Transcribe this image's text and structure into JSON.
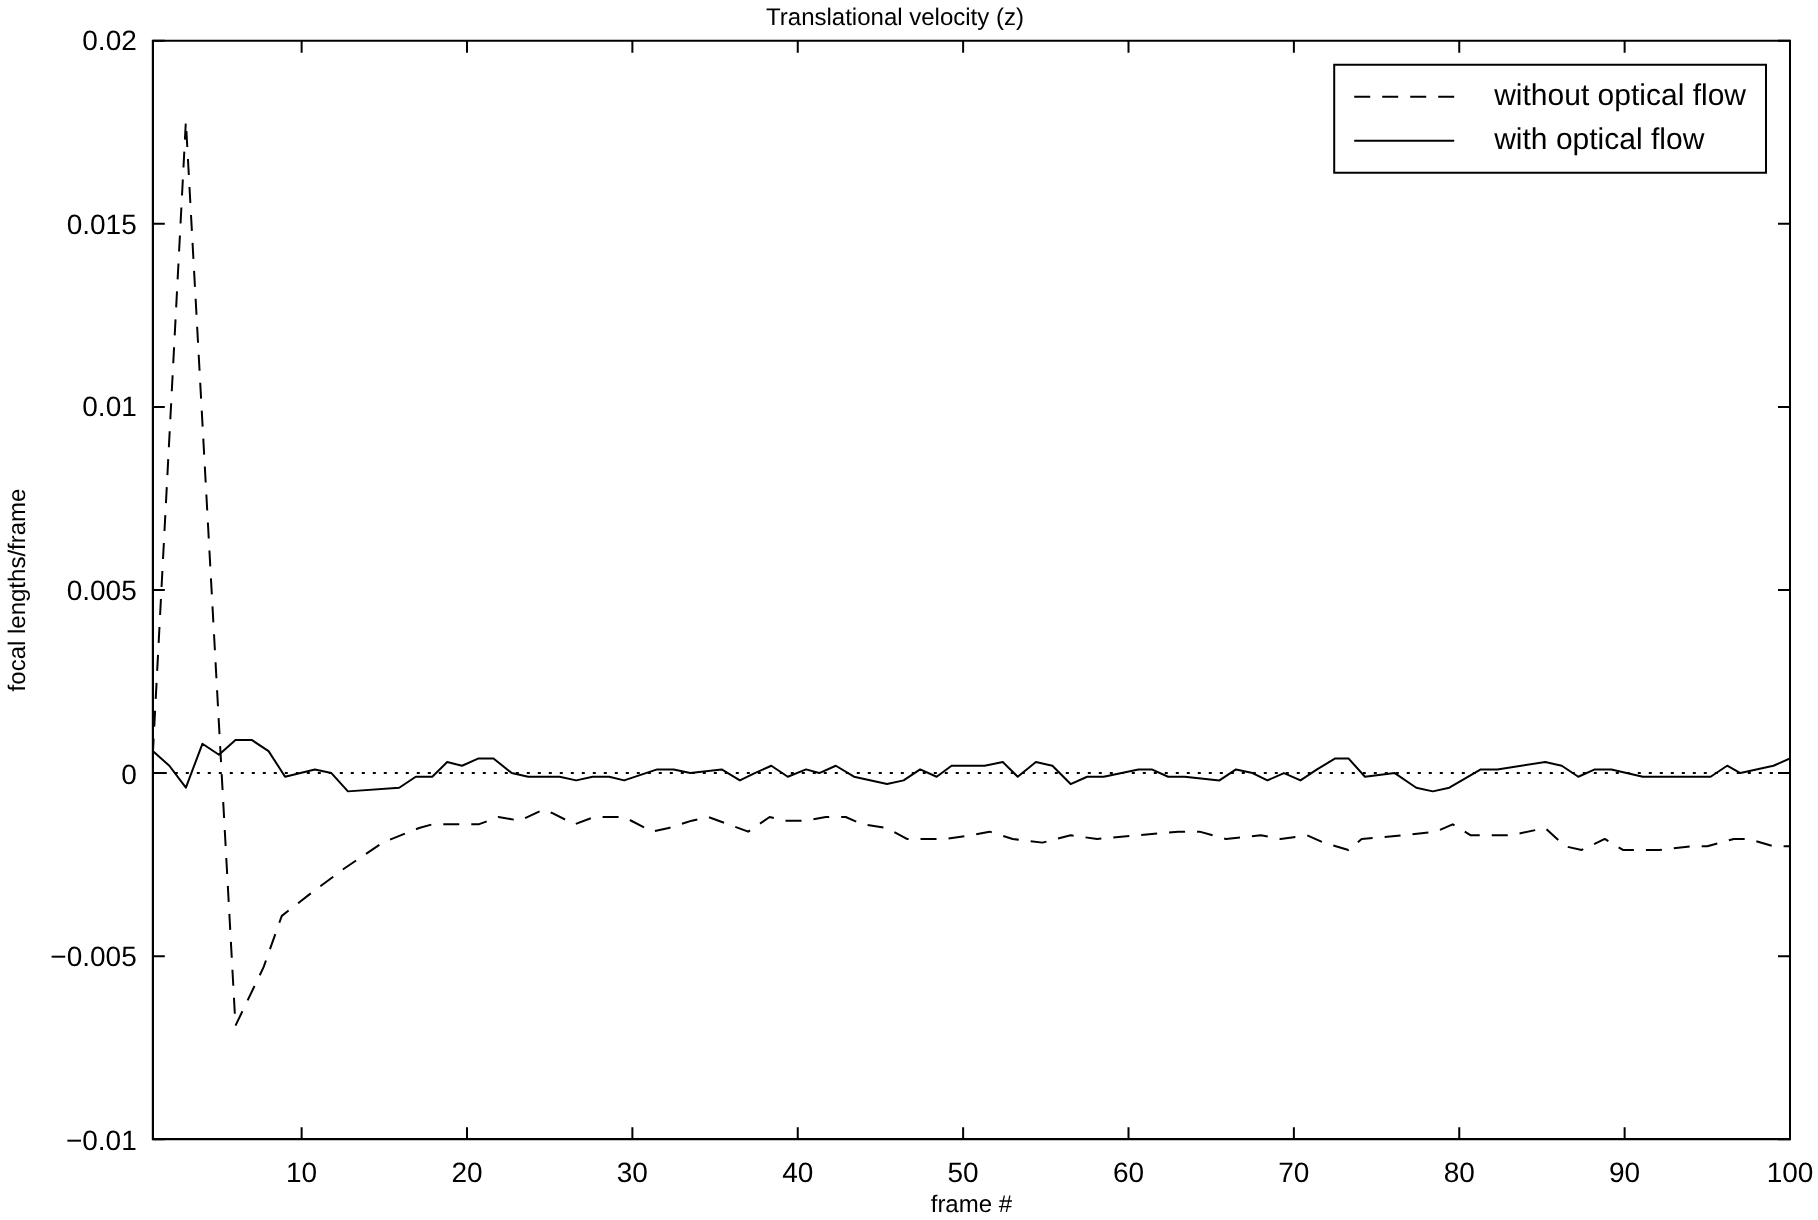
{
  "chart_data": {
    "type": "line",
    "title": "Translational velocity (z)",
    "xlabel": "frame #",
    "ylabel": "focal lengths/frame",
    "xlim": [
      1,
      100
    ],
    "xticks": [
      10,
      20,
      30,
      40,
      50,
      60,
      70,
      80,
      90,
      100
    ],
    "ylim": [
      -0.01,
      0.02
    ],
    "yticks": [
      -0.01,
      -0.005,
      0,
      0.005,
      0.01,
      0.015,
      0.02
    ],
    "grid": false,
    "legend": "top right",
    "marker": "none",
    "ref_lines": [
      {
        "axis": "y",
        "value": 0,
        "color": "#000000",
        "line_style": "dotted"
      }
    ],
    "series": [
      {
        "name": "without optical flow",
        "color": "#000000",
        "line_style": "dashed",
        "x": [
          1,
          3,
          6,
          7.7,
          8.8,
          10.8,
          12.6,
          14.9,
          17.1,
          17.9,
          20.7,
          21.9,
          23.2,
          24.6,
          25.2,
          26.5,
          27.7,
          29.5,
          31.2,
          32.2,
          33.6,
          34.6,
          37,
          38.3,
          39.3,
          40.5,
          41.7,
          42.9,
          43.9,
          45.4,
          46.6,
          48.9,
          50.5,
          51.6,
          53,
          54.8,
          56.5,
          58.1,
          60.6,
          63,
          64.3,
          65.9,
          68,
          69.2,
          70.8,
          71.8,
          73.3,
          74.1,
          76.6,
          78.6,
          79.6,
          80.7,
          83.1,
          85.2,
          86.4,
          87.4,
          88.8,
          89.9,
          92.1,
          94,
          95,
          96.6,
          97.5,
          99,
          100
        ],
        "values": [
          0.0005,
          0.0178,
          -0.0069,
          -0.0053,
          -0.0039,
          -0.0032,
          -0.0026,
          -0.0019,
          -0.0015,
          -0.0014,
          -0.0014,
          -0.0012,
          -0.0013,
          -0.001,
          -0.0011,
          -0.0014,
          -0.0012,
          -0.0012,
          -0.0016,
          -0.0015,
          -0.0013,
          -0.0012,
          -0.0016,
          -0.0012,
          -0.0013,
          -0.0013,
          -0.0012,
          -0.0012,
          -0.0014,
          -0.0015,
          -0.0018,
          -0.0018,
          -0.0017,
          -0.0016,
          -0.0018,
          -0.0019,
          -0.0017,
          -0.0018,
          -0.0017,
          -0.0016,
          -0.0016,
          -0.0018,
          -0.0017,
          -0.0018,
          -0.0017,
          -0.0019,
          -0.0021,
          -0.0018,
          -0.0017,
          -0.0016,
          -0.0014,
          -0.0017,
          -0.0017,
          -0.0015,
          -0.002,
          -0.0021,
          -0.0018,
          -0.0021,
          -0.0021,
          -0.002,
          -0.002,
          -0.0018,
          -0.0018,
          -0.002,
          -0.002
        ]
      },
      {
        "name": "with optical flow",
        "color": "#000000",
        "line_style": "solid",
        "x": [
          1,
          2,
          3,
          4,
          5,
          6,
          7,
          8,
          9,
          10.8,
          11.8,
          12.8,
          15.9,
          16.9,
          17.9,
          18.8,
          19.7,
          20.7,
          21.6,
          22.7,
          23.7,
          25.6,
          26.6,
          27.6,
          28.6,
          29.5,
          31.5,
          32.5,
          33.5,
          35.4,
          36.5,
          37.4,
          38.4,
          39.4,
          40.5,
          41.3,
          42.3,
          43.4,
          45.4,
          46.4,
          47.4,
          48.4,
          49.3,
          51.3,
          52.4,
          53.3,
          54.4,
          55.4,
          56.5,
          57.5,
          58.5,
          60.6,
          61.4,
          62.4,
          63.4,
          65.5,
          66.5,
          67.5,
          68.4,
          69.4,
          70.4,
          71.4,
          72.5,
          73.3,
          74.3,
          76.1,
          77.4,
          78.4,
          79.4,
          81.3,
          82.3,
          85.2,
          86.2,
          87.2,
          88.2,
          89.2,
          91.1,
          93.2,
          95.2,
          96.2,
          97,
          99,
          100
        ],
        "values": [
          0.0006,
          0.0002,
          -0.0004,
          0.0008,
          0.0005,
          0.0009,
          0.0009,
          0.0006,
          -0.0001,
          0.0001,
          0,
          -0.0005,
          -0.0004,
          -0.0001,
          -0.0001,
          0.0003,
          0.0002,
          0.0004,
          0.0004,
          0,
          -0.0001,
          -0.0001,
          -0.0002,
          -0.0001,
          -0.0001,
          -0.0002,
          0.0001,
          0.0001,
          0,
          0.0001,
          -0.0002,
          0,
          0.0002,
          -0.0001,
          0.0001,
          0,
          0.0002,
          -0.0001,
          -0.0003,
          -0.0002,
          0.0001,
          -0.0001,
          0.0002,
          0.0002,
          0.0003,
          -0.0001,
          0.0003,
          0.0002,
          -0.0003,
          -0.0001,
          -0.0001,
          0.0001,
          0.0001,
          -0.0001,
          -0.0001,
          -0.0002,
          0.0001,
          0,
          -0.0002,
          0,
          -0.0002,
          0.0001,
          0.0004,
          0.0004,
          -0.0001,
          0,
          -0.0004,
          -0.0005,
          -0.0004,
          0.0001,
          0.0001,
          0.0003,
          0.0002,
          -0.0001,
          0.0001,
          0.0001,
          -0.0001,
          -0.0001,
          -0.0001,
          0.0002,
          0,
          0.0002,
          0.0004
        ]
      }
    ]
  }
}
